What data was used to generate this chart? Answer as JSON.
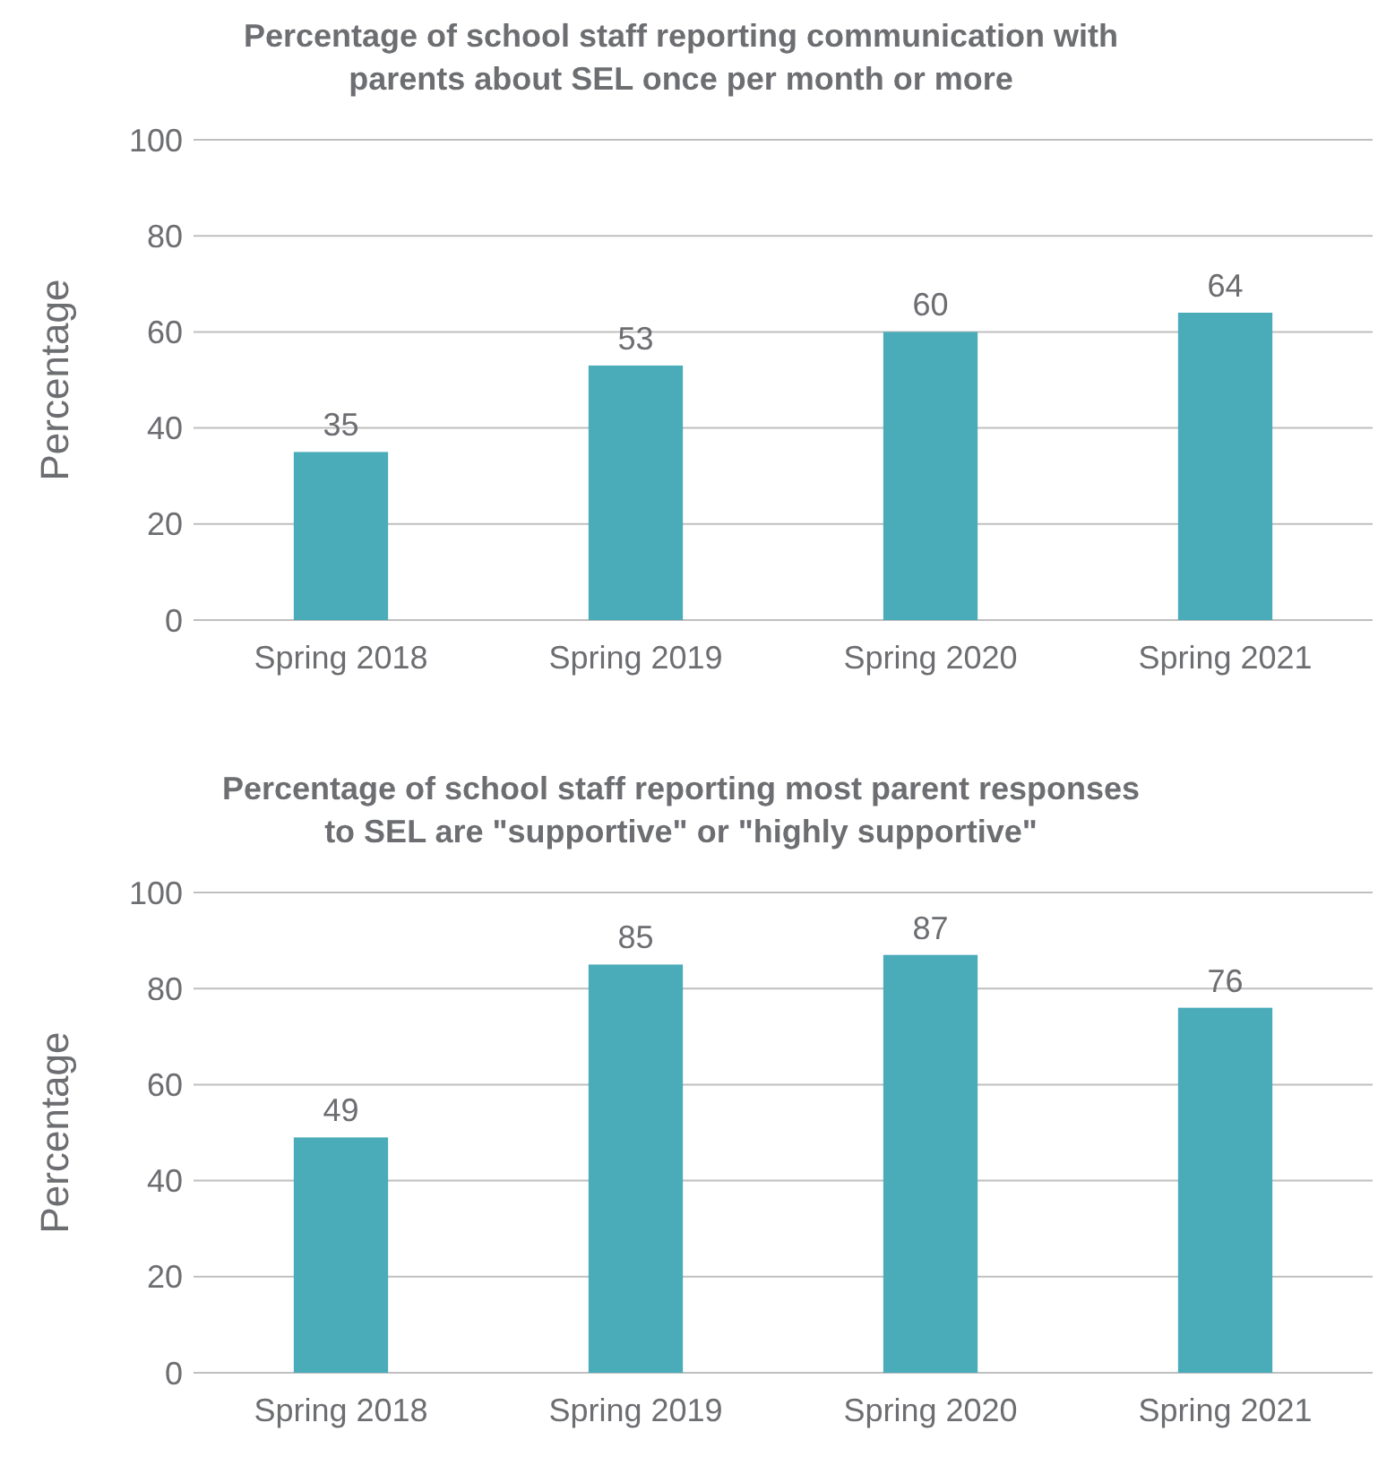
{
  "chart_data": [
    {
      "type": "bar",
      "title": "Percentage of school staff reporting communication with parents about SEL once per month or more",
      "ylabel": "Percentage",
      "categories": [
        "Spring 2018",
        "Spring 2019",
        "Spring 2020",
        "Spring 2021"
      ],
      "values": [
        35,
        53,
        60,
        64
      ],
      "color": "#4aabb9",
      "ylim": [
        0,
        100
      ],
      "yticks": [
        0,
        20,
        40,
        60,
        80,
        100
      ],
      "grid": "y",
      "data_labels": true
    },
    {
      "type": "bar",
      "title": "Percentage of school staff reporting most parent responses to SEL are \"supportive\" or \"highly supportive\"",
      "ylabel": "Percentage",
      "categories": [
        "Spring 2018",
        "Spring 2019",
        "Spring 2020",
        "Spring 2021"
      ],
      "values": [
        49,
        85,
        87,
        76
      ],
      "color": "#4aabb9",
      "ylim": [
        0,
        100
      ],
      "yticks": [
        0,
        20,
        40,
        60,
        80,
        100
      ],
      "grid": "y",
      "data_labels": true
    }
  ]
}
